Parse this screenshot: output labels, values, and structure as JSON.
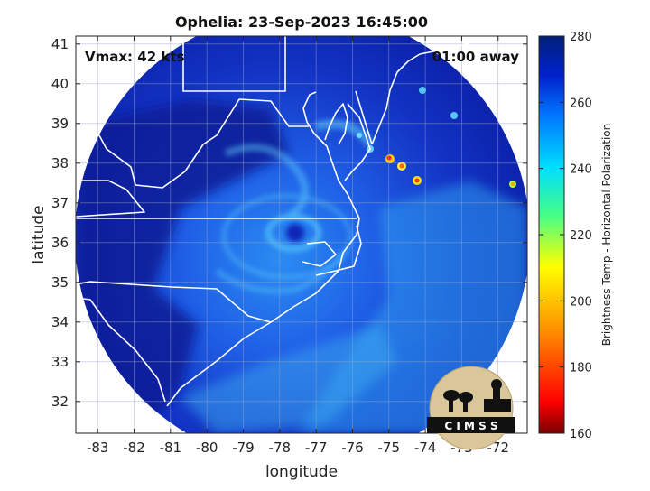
{
  "title": "Ophelia: 23-Sep-2023 16:45:00",
  "vmax_label": "Vmax: 42 kts",
  "time_label": "01:00 away",
  "xlabel": "longitude",
  "ylabel": "latitude",
  "colorbar_label": "Brightness Temp - Horizontal Polarization",
  "logo_text": "C I M S S",
  "chart_data": {
    "type": "heatmap",
    "title": "Ophelia: 23-Sep-2023 16:45:00",
    "xlabel": "longitude",
    "ylabel": "latitude",
    "x_ticks": [
      -83,
      -82,
      -81,
      -80,
      -79,
      -78,
      -77,
      -76,
      -75,
      -74,
      -73,
      -72
    ],
    "y_ticks": [
      32,
      33,
      34,
      35,
      36,
      37,
      38,
      39,
      40,
      41
    ],
    "xlim": [
      -83.6,
      -71.2
    ],
    "ylim": [
      31.2,
      41.2
    ],
    "grid": true,
    "colorbar": {
      "label": "Brightness Temp - Horizontal Polarization",
      "ticks": [
        160,
        180,
        200,
        220,
        240,
        260,
        280
      ],
      "range": [
        160,
        280
      ],
      "colors": [
        "#7a0000",
        "#ff0000",
        "#ff8800",
        "#ffff00",
        "#44ff88",
        "#00ddff",
        "#0077ff",
        "#0022cc",
        "#001f7a"
      ]
    },
    "annotations": [
      "Vmax: 42 kts",
      "01:00 away"
    ]
  }
}
